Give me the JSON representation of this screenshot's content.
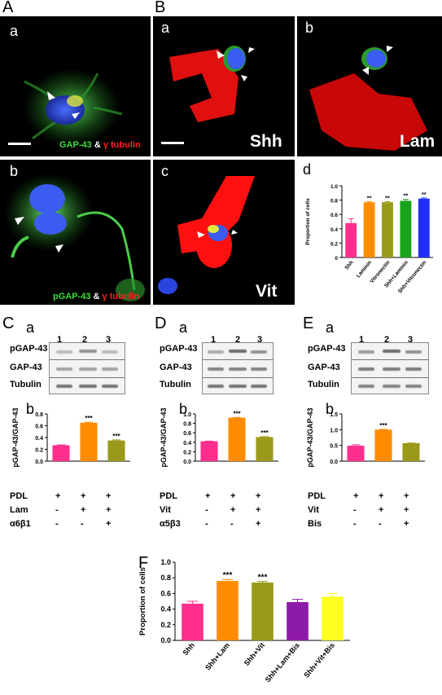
{
  "panels": {
    "A": "A",
    "B": "B",
    "C": "C",
    "D": "D",
    "E": "E",
    "F": "F"
  },
  "subpanels": {
    "Aa": "a",
    "Ab": "b",
    "Ba": "a",
    "Bb": "b",
    "Bc": "c",
    "Bd": "d",
    "Ca": "a",
    "Cb": "b",
    "Da": "a",
    "Db": "b",
    "Ea": "a",
    "Eb": "b"
  },
  "micrographs": {
    "Aa_caption_green": "GAP-43",
    "Aa_caption_amp": "&",
    "Aa_caption_red": "γ tubulin",
    "Ab_caption_green": "pGAP-43",
    "Ab_caption_amp": "&",
    "Ab_caption_red": "γ tubulin",
    "Ba_label": "Shh",
    "Bb_label": "Lam",
    "Bc_label": "Vit"
  },
  "blots": {
    "lanes": [
      "1",
      "2",
      "3"
    ],
    "rows": [
      "pGAP-43",
      "GAP-43",
      "Tubulin"
    ]
  },
  "tables": {
    "C": {
      "rows": [
        [
          "PDL",
          "+",
          "+",
          "+"
        ],
        [
          "Lam",
          "-",
          "+",
          "+"
        ],
        [
          "α6β1",
          "-",
          "-",
          "+"
        ]
      ]
    },
    "D": {
      "rows": [
        [
          "PDL",
          "+",
          "+",
          "+"
        ],
        [
          "Vit",
          "-",
          "+",
          "+"
        ],
        [
          "α5β3",
          "-",
          "-",
          "+"
        ]
      ]
    },
    "E": {
      "rows": [
        [
          "PDL",
          "+",
          "+",
          "+"
        ],
        [
          "Vit",
          "-",
          "+",
          "+"
        ],
        [
          "Bis",
          "-",
          "-",
          "+"
        ]
      ]
    }
  },
  "colors": {
    "pink": "#ff2f8e",
    "orange": "#ff8c00",
    "olive": "#9a9a1a",
    "green": "#1aa31a",
    "blue": "#1f2ff5",
    "purple": "#8e1aa8",
    "yellow": "#ffff20",
    "micro_green": "#3ddc3d",
    "micro_red": "#ff2020"
  },
  "chart_data": [
    {
      "id": "Bd",
      "type": "bar",
      "ylabel": "Proportion of cells",
      "ylim": [
        0,
        1.0
      ],
      "yticks": [
        "0",
        "0.2",
        "0.4",
        "0.6",
        "0.8",
        "1.0"
      ],
      "categories": [
        "Shh",
        "Laminin",
        "Vitronectin",
        "Shh+Laminin",
        "Shh+Vitronectin"
      ],
      "values": [
        0.48,
        0.77,
        0.77,
        0.79,
        0.82
      ],
      "errors": [
        0.06,
        0.01,
        0.01,
        0.02,
        0.01
      ],
      "annotations": [
        "",
        "**",
        "**",
        "**",
        "**"
      ],
      "colors": [
        "#ff2f8e",
        "#ff8c00",
        "#9a9a1a",
        "#1aa31a",
        "#1f2ff5"
      ]
    },
    {
      "id": "Cb",
      "type": "bar",
      "ylabel": "pGAP-43/GAP-43",
      "ylim": [
        0,
        0.8
      ],
      "yticks": [
        "0.0",
        "0.2",
        "0.4",
        "0.6",
        "0.8"
      ],
      "categories": [
        "",
        "",
        ""
      ],
      "values": [
        0.27,
        0.65,
        0.35
      ],
      "errors": [
        0.005,
        0.01,
        0.01
      ],
      "annotations": [
        "",
        "***",
        "***"
      ],
      "colors": [
        "#ff2f8e",
        "#ff8c00",
        "#9a9a1a"
      ]
    },
    {
      "id": "Db",
      "type": "bar",
      "ylabel": "pGAP-43/GAP-43",
      "ylim": [
        0,
        1.0
      ],
      "yticks": [
        "0.0",
        "0.2",
        "0.4",
        "0.6",
        "0.8",
        "1.0"
      ],
      "categories": [
        "",
        "",
        ""
      ],
      "values": [
        0.42,
        0.92,
        0.51
      ],
      "errors": [
        0.005,
        0.005,
        0.01
      ],
      "annotations": [
        "",
        "***",
        "***"
      ],
      "colors": [
        "#ff2f8e",
        "#ff8c00",
        "#9a9a1a"
      ]
    },
    {
      "id": "Eb",
      "type": "bar",
      "ylabel": "pGAP-43/GAP-43",
      "ylim": [
        0,
        1.5
      ],
      "yticks": [
        "0.0",
        "0.5",
        "1.0",
        "1.5"
      ],
      "categories": [
        "",
        "",
        ""
      ],
      "values": [
        0.49,
        1.0,
        0.57
      ],
      "errors": [
        0.03,
        0.01,
        0.005
      ],
      "annotations": [
        "",
        "***",
        ""
      ],
      "colors": [
        "#ff2f8e",
        "#ff8c00",
        "#9a9a1a"
      ]
    },
    {
      "id": "F",
      "type": "bar",
      "ylabel": "Proportion of cells",
      "ylim": [
        0,
        1.0
      ],
      "yticks": [
        "0.0",
        "0.2",
        "0.4",
        "0.6",
        "0.8",
        "1.0"
      ],
      "categories": [
        "Shh",
        "Shh+Lam",
        "Shh+Vit",
        "Shh+Lam+Bis",
        "Shh+Vit+Bis"
      ],
      "values": [
        0.47,
        0.76,
        0.74,
        0.49,
        0.56
      ],
      "errors": [
        0.03,
        0.02,
        0.015,
        0.035,
        0.04
      ],
      "annotations": [
        "",
        "***",
        "***",
        "",
        ""
      ],
      "colors": [
        "#ff2f8e",
        "#ff8c00",
        "#9a9a1a",
        "#8e1aa8",
        "#ffff20"
      ]
    }
  ]
}
